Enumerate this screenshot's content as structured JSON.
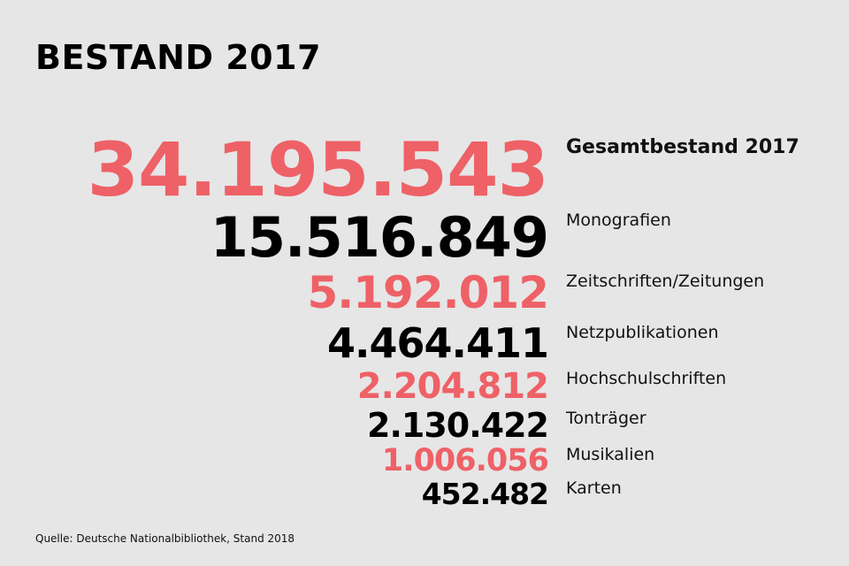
{
  "title": "BESTAND 2017",
  "source": "Quelle: Deutsche Nationalbibliothek, Stand 2018",
  "colors": {
    "background": "#e6e6e6",
    "accent": "#ee6167",
    "dark": "#000000"
  },
  "chart_data": {
    "type": "table",
    "title": "BESTAND 2017",
    "rows": [
      {
        "label": "Gesamtbestand 2017",
        "value": 34195543,
        "display": "34.195.543",
        "color": "#ee6167"
      },
      {
        "label": "Monografien",
        "value": 15516849,
        "display": "15.516.849",
        "color": "#000000"
      },
      {
        "label": "Zeitschriften/Zeitungen",
        "value": 5192012,
        "display": "5.192.012",
        "color": "#ee6167"
      },
      {
        "label": "Netzpublikationen",
        "value": 4464411,
        "display": "4.464.411",
        "color": "#000000"
      },
      {
        "label": "Hochschulschriften",
        "value": 2204812,
        "display": "2.204.812",
        "color": "#ee6167"
      },
      {
        "label": "Tonträger",
        "value": 2130422,
        "display": "2.130.422",
        "color": "#000000"
      },
      {
        "label": "Musikalien",
        "value": 1006056,
        "display": "1.006.056",
        "color": "#ee6167"
      },
      {
        "label": "Karten",
        "value": 452482,
        "display": "452.482",
        "color": "#000000"
      }
    ]
  }
}
